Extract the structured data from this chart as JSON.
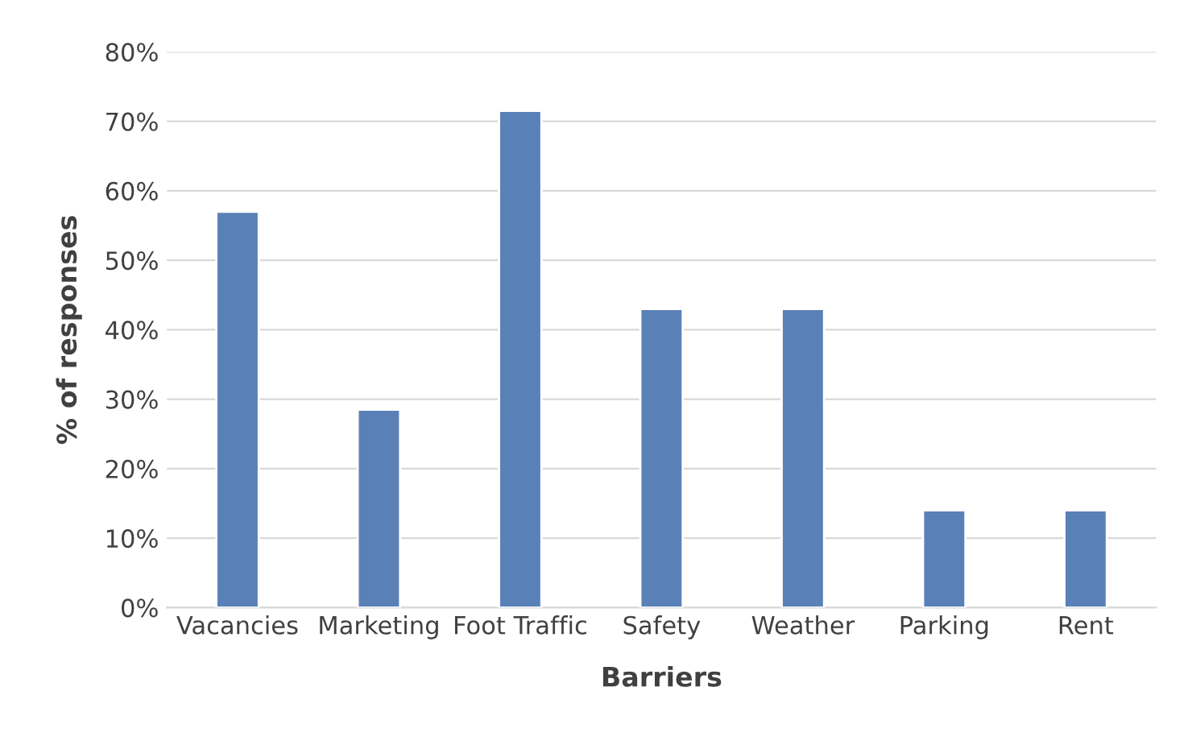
{
  "chart_data": {
    "type": "bar",
    "xlabel": "Barriers",
    "ylabel": "% of responses",
    "categories": [
      "Vacancies",
      "Marketing",
      "Foot Traffic",
      "Safety",
      "Weather",
      "Parking",
      "Rent"
    ],
    "values": [
      57,
      28.5,
      71.5,
      43,
      43,
      14,
      14
    ],
    "color": "#5a80b8",
    "ylim": [
      0,
      80
    ],
    "yticks": [
      {
        "value": 0,
        "label": "0%"
      },
      {
        "value": 10,
        "label": "10%"
      },
      {
        "value": 20,
        "label": "20%"
      },
      {
        "value": 30,
        "label": "30%"
      },
      {
        "value": 40,
        "label": "40%"
      },
      {
        "value": 50,
        "label": "50%"
      },
      {
        "value": 60,
        "label": "60%"
      },
      {
        "value": 70,
        "label": "70%"
      },
      {
        "value": 80,
        "label": "80%"
      }
    ],
    "grid": "y"
  }
}
